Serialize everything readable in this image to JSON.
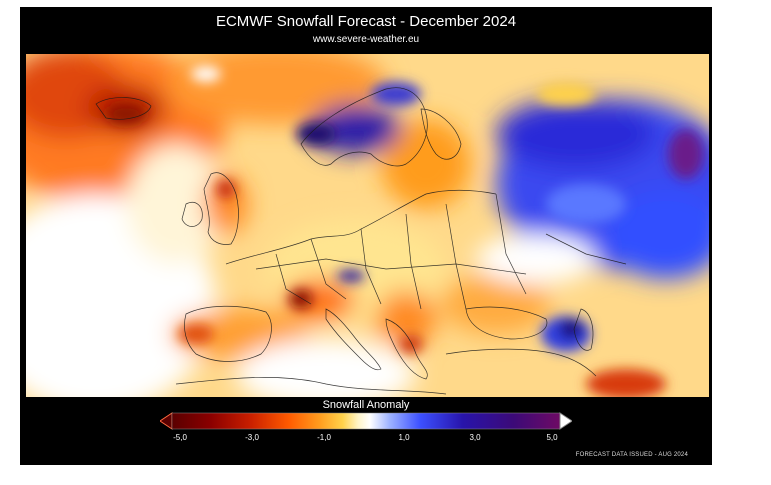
{
  "map": {
    "title": "ECMWF Snowfall Forecast  -  December 2024",
    "source_url": "www.severe-weather.eu",
    "legend": {
      "title": "Snowfall Anomaly",
      "ticks": [
        "-5,0",
        "-3,0",
        "-1,0",
        "1,0",
        "3,0",
        "5,0"
      ],
      "colors": [
        "#5a0000",
        "#8b0000",
        "#c81e00",
        "#ff5a00",
        "#ff9c1e",
        "#ffd24b",
        "#fff5c8",
        "#ffffff",
        "#9fb4ff",
        "#3c50ff",
        "#2814aa",
        "#3c0a78",
        "#6e0a64"
      ]
    },
    "footer": "FORECAST DATA ISSUED - AUG 2024",
    "region": "Europe"
  }
}
